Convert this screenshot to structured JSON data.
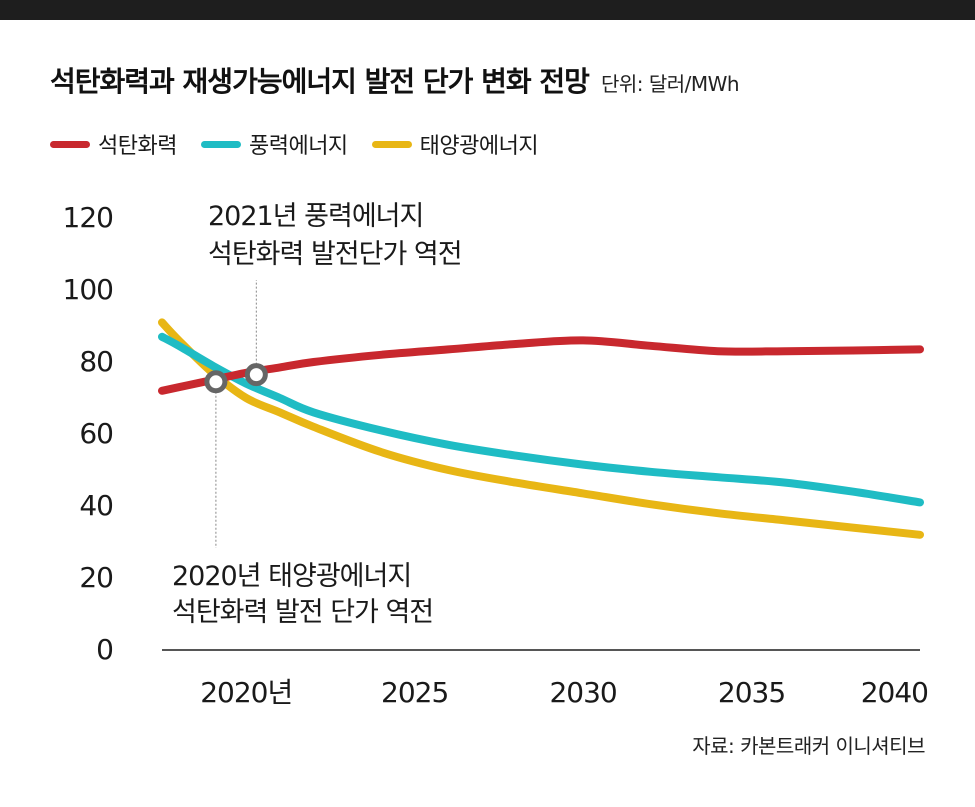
{
  "header": {
    "title": "석탄화력과 재생가능에너지 발전 단가 변화 전망",
    "unit": "단위: 달러/MWh"
  },
  "colors": {
    "coal": "#c8282e",
    "wind": "#1fbcc4",
    "solar": "#e8b615",
    "bar": "#1e1e1e",
    "marker_stroke": "#666666"
  },
  "chart_data": {
    "type": "line",
    "title": "석탄화력과 재생가능에너지 발전 단가 변화 전망",
    "xlabel": "",
    "ylabel": "단위: 달러/MWh",
    "ylim": [
      0,
      120
    ],
    "xlim": [
      2017.5,
      2040
    ],
    "y_ticks": [
      "120",
      "100",
      "80",
      "60",
      "40",
      "20",
      "0"
    ],
    "x_ticks": [
      {
        "value": 2020,
        "label": "2020년"
      },
      {
        "value": 2025,
        "label": "2025"
      },
      {
        "value": 2030,
        "label": "2030"
      },
      {
        "value": 2035,
        "label": "2035"
      },
      {
        "value": 2040,
        "label": "2040"
      }
    ],
    "grid": false,
    "legend_position": "top-left",
    "series": [
      {
        "name": "석탄화력",
        "color": "#c8282e",
        "points": [
          [
            2017.5,
            72
          ],
          [
            2018,
            73
          ],
          [
            2019,
            75
          ],
          [
            2020,
            77
          ],
          [
            2021,
            78.5
          ],
          [
            2022,
            80
          ],
          [
            2024,
            82
          ],
          [
            2026,
            83.5
          ],
          [
            2028,
            85
          ],
          [
            2030,
            86
          ],
          [
            2032,
            84.5
          ],
          [
            2034,
            83
          ],
          [
            2036,
            83
          ],
          [
            2038,
            83.2
          ],
          [
            2040,
            83.5
          ]
        ]
      },
      {
        "name": "풍력에너지",
        "color": "#1fbcc4",
        "points": [
          [
            2017.5,
            87
          ],
          [
            2018,
            84.5
          ],
          [
            2019,
            79
          ],
          [
            2020,
            74
          ],
          [
            2021,
            70
          ],
          [
            2022,
            66
          ],
          [
            2024,
            61
          ],
          [
            2026,
            57
          ],
          [
            2028,
            54
          ],
          [
            2030,
            51.5
          ],
          [
            2032,
            49.5
          ],
          [
            2034,
            48
          ],
          [
            2036,
            46.5
          ],
          [
            2038,
            44
          ],
          [
            2040,
            41
          ]
        ]
      },
      {
        "name": "태양광에너지",
        "color": "#e8b615",
        "points": [
          [
            2017.5,
            91
          ],
          [
            2018,
            86
          ],
          [
            2019,
            77
          ],
          [
            2020,
            70
          ],
          [
            2021,
            66
          ],
          [
            2022,
            62
          ],
          [
            2024,
            55
          ],
          [
            2026,
            50
          ],
          [
            2028,
            46.5
          ],
          [
            2030,
            43.5
          ],
          [
            2032,
            40.5
          ],
          [
            2034,
            38
          ],
          [
            2036,
            36
          ],
          [
            2038,
            34
          ],
          [
            2040,
            32
          ]
        ]
      }
    ],
    "markers": [
      {
        "x": 2019.1,
        "y": 74.5,
        "target": "solar"
      },
      {
        "x": 2020.3,
        "y": 76.5,
        "target": "wind"
      }
    ],
    "annotations": [
      {
        "id": "wind",
        "lines": [
          "2021년 풍력에너지",
          "석탄화력 발전단가 역전"
        ]
      },
      {
        "id": "solar",
        "lines": [
          "2020년 태양광에너지",
          "석탄화력 발전 단가 역전"
        ]
      }
    ]
  },
  "footer": {
    "source": "자료: 카본트래커 이니셔티브"
  }
}
